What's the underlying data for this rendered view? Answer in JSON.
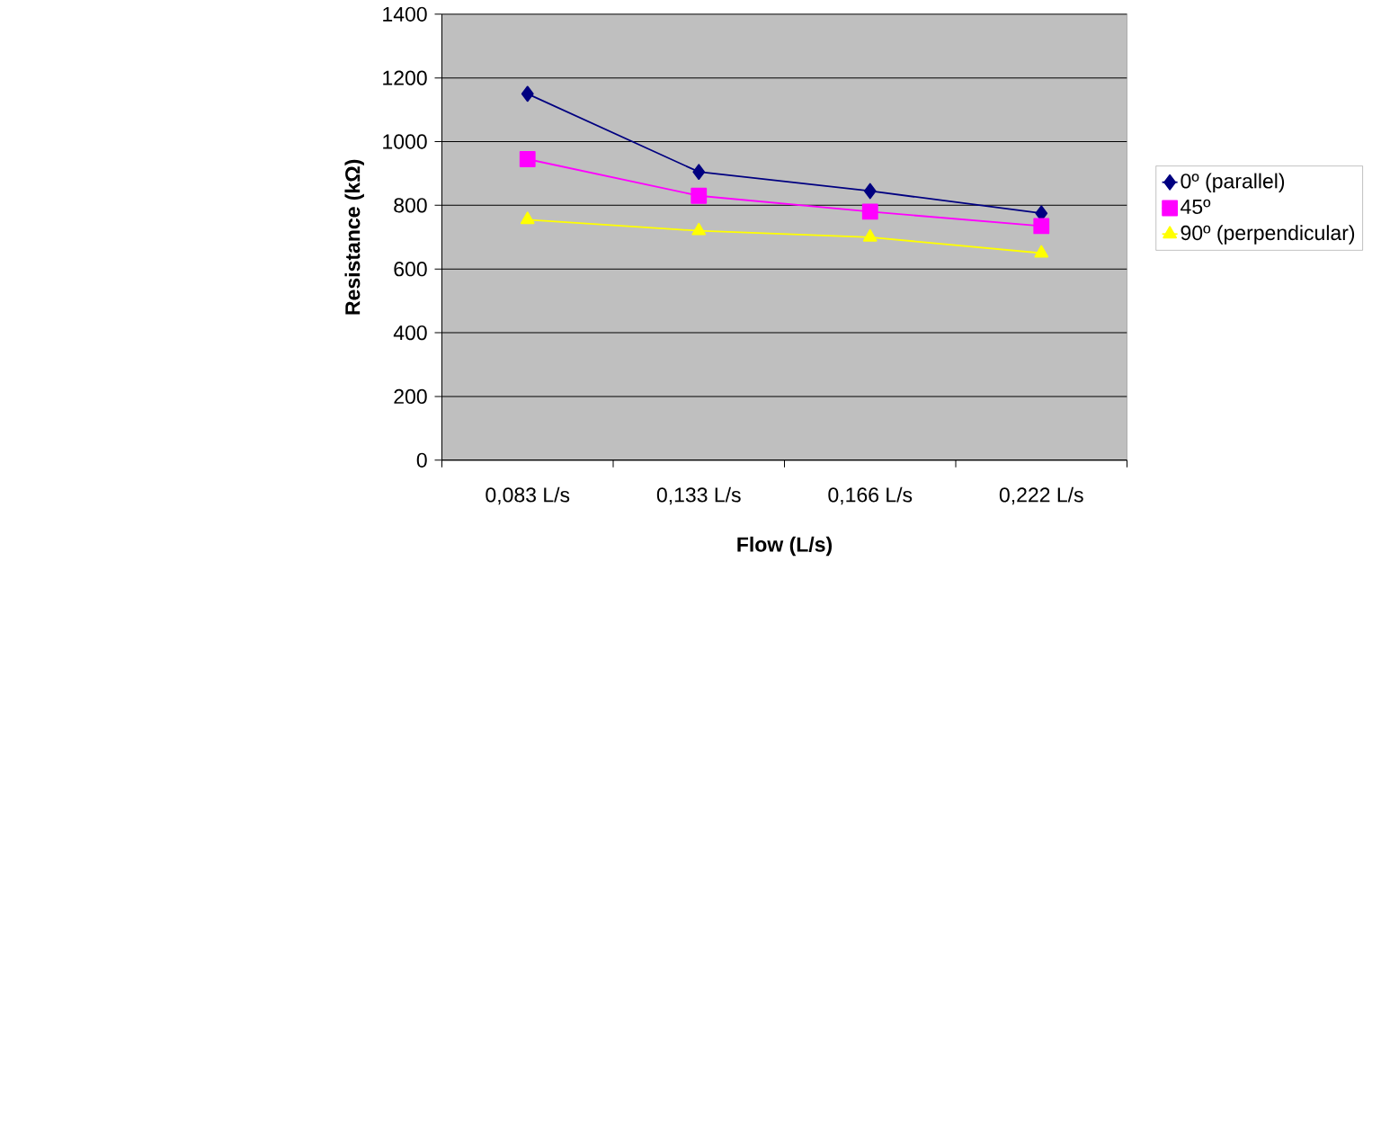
{
  "chart_data": {
    "type": "line",
    "xlabel": "Flow (L/s)",
    "ylabel": "Resistance (kΩ)",
    "categories": [
      "0,083 L/s",
      "0,133 L/s",
      "0,166 L/s",
      "0,222 L/s"
    ],
    "series": [
      {
        "name": "0º (parallel)",
        "color": "#000080",
        "marker": "diamond",
        "values": [
          1150,
          905,
          845,
          775
        ]
      },
      {
        "name": "45º",
        "color": "#ff00ff",
        "marker": "square",
        "values": [
          945,
          830,
          780,
          735
        ]
      },
      {
        "name": "90º (perpendicular)",
        "color": "#ffff00",
        "marker": "triangle",
        "values": [
          755,
          720,
          700,
          650
        ]
      }
    ],
    "ylim": [
      0,
      1400
    ],
    "yticks": [
      0,
      200,
      400,
      600,
      800,
      1000,
      1200,
      1400
    ],
    "grid": "y",
    "legend": "right",
    "line_style": "solid"
  }
}
